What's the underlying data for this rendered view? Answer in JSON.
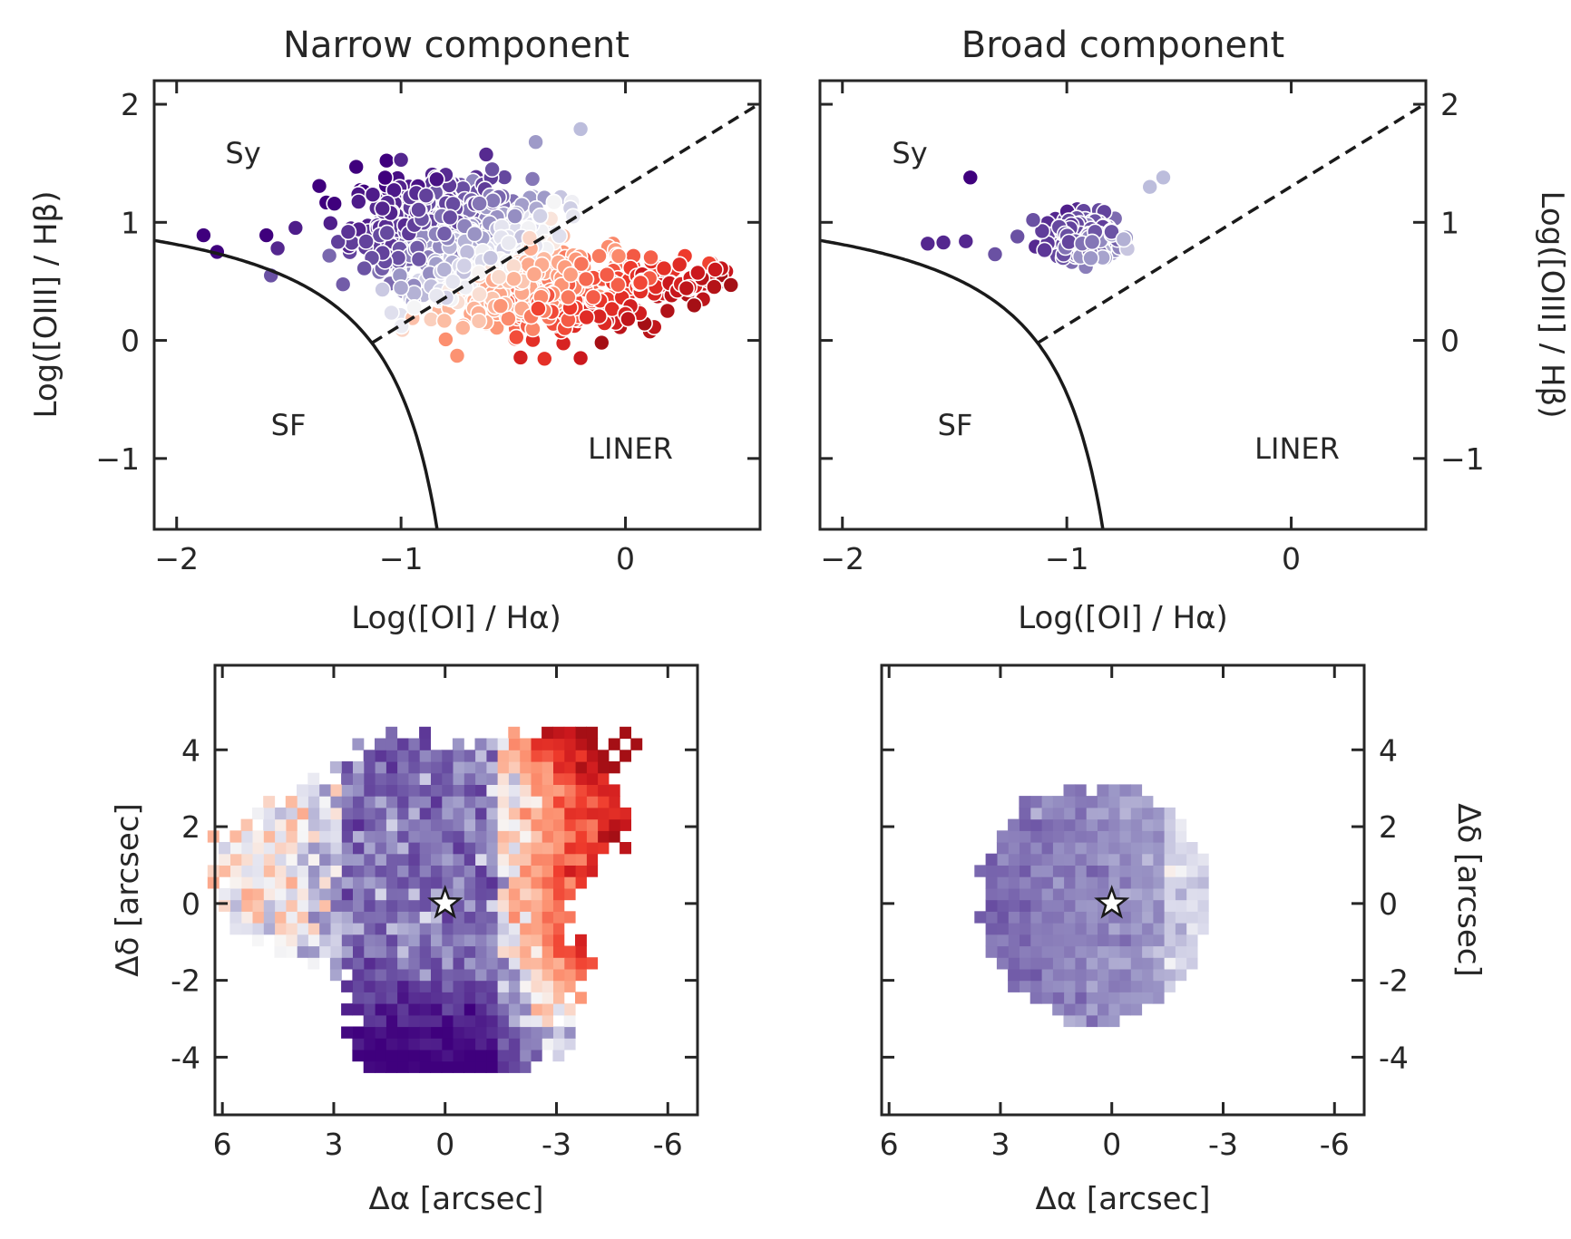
{
  "chart_data": [
    {
      "id": "bpt-narrow",
      "type": "scatter",
      "title": "Narrow component",
      "xlabel": "Log([OI] / Hα)",
      "ylabel": "Log([OIII] / Hβ)",
      "xlim": [
        -2.1,
        0.6
      ],
      "ylim": [
        -1.6,
        2.2
      ],
      "xticks": [
        -2,
        -1,
        0
      ],
      "xtick_labels": [
        "−2",
        "−1",
        "0"
      ],
      "yticks": [
        -1,
        0,
        1,
        2
      ],
      "ytick_labels": [
        "−1",
        "0",
        "1",
        "2"
      ],
      "yaxis_side": "left",
      "regions": [
        {
          "label": "Sy",
          "x": -1.8,
          "y": 1.5
        },
        {
          "label": "SF",
          "x": -1.6,
          "y": -0.7
        },
        {
          "label": "LINER",
          "x": 0.02,
          "y": -0.9
        }
      ],
      "points_sample": [
        {
          "x": -1.88,
          "y": 0.89,
          "color": "#3f007d"
        },
        {
          "x": -1.82,
          "y": 0.75,
          "color": "#3f007d"
        },
        {
          "x": -1.6,
          "y": 0.89,
          "color": "#3f007d"
        },
        {
          "x": -1.55,
          "y": 0.78,
          "color": "#54278f"
        },
        {
          "x": -1.58,
          "y": 0.55,
          "color": "#6a51a3"
        },
        {
          "x": -1.2,
          "y": 1.47,
          "color": "#3f007d"
        },
        {
          "x": -1.0,
          "y": 1.53,
          "color": "#54278f"
        },
        {
          "x": -0.4,
          "y": 1.68,
          "color": "#9e9ac8"
        },
        {
          "x": -0.2,
          "y": 1.79,
          "color": "#bcbddc"
        },
        {
          "x": 0.4,
          "y": 0.6,
          "color": "#cb181d"
        },
        {
          "x": 0.47,
          "y": 0.47,
          "color": "#a50f15"
        },
        {
          "x": -0.2,
          "y": -0.15,
          "color": "#cb181d"
        },
        {
          "x": -0.75,
          "y": -0.13,
          "color": "#fc9272"
        }
      ]
    },
    {
      "id": "bpt-broad",
      "type": "scatter",
      "title": "Broad component",
      "xlabel": "Log([OI] / Hα)",
      "ylabel": "Log([OIII] / Hβ)",
      "xlim": [
        -2.1,
        0.6
      ],
      "ylim": [
        -1.6,
        2.2
      ],
      "xticks": [
        -2,
        -1,
        0
      ],
      "xtick_labels": [
        "−2",
        "−1",
        "0"
      ],
      "yticks": [
        -1,
        0,
        1,
        2
      ],
      "ytick_labels": [
        "−1",
        "0",
        "1",
        "2"
      ],
      "yaxis_side": "right",
      "regions": [
        {
          "label": "Sy",
          "x": -1.8,
          "y": 1.5
        },
        {
          "label": "SF",
          "x": -1.6,
          "y": -0.7
        },
        {
          "label": "LINER",
          "x": 0.02,
          "y": -0.9
        }
      ],
      "points_sample": [
        {
          "x": -1.43,
          "y": 1.38,
          "color": "#3f007d"
        },
        {
          "x": -1.62,
          "y": 0.82,
          "color": "#54278f"
        },
        {
          "x": -1.55,
          "y": 0.83,
          "color": "#54278f"
        },
        {
          "x": -1.45,
          "y": 0.84,
          "color": "#54278f"
        },
        {
          "x": -1.32,
          "y": 0.73,
          "color": "#6a51a3"
        },
        {
          "x": -1.22,
          "y": 0.88,
          "color": "#6a51a3"
        },
        {
          "x": -1.15,
          "y": 1.02,
          "color": "#6a51a3"
        },
        {
          "x": -0.63,
          "y": 1.3,
          "color": "#bcbddc"
        },
        {
          "x": -0.57,
          "y": 1.38,
          "color": "#bcbddc"
        }
      ]
    },
    {
      "id": "map-narrow",
      "type": "heatmap",
      "title": "",
      "xlabel": "Δα [arcsec]",
      "ylabel": "Δδ [arcsec]",
      "xlim": [
        6.2,
        -6.8
      ],
      "ylim": [
        -5.5,
        6.2
      ],
      "xticks": [
        6,
        3,
        0,
        -3,
        -6
      ],
      "xtick_labels": [
        "6",
        "3",
        "0",
        "-3",
        "-6"
      ],
      "yticks": [
        -4,
        -2,
        0,
        2,
        4
      ],
      "ytick_labels": [
        "-4",
        "-2",
        "0",
        "2",
        "4"
      ],
      "yaxis_side": "left",
      "marker": {
        "symbol": "star",
        "x": 0,
        "y": 0
      }
    },
    {
      "id": "map-broad",
      "type": "heatmap",
      "title": "",
      "xlabel": "Δα [arcsec]",
      "ylabel": "Δδ [arcsec]",
      "xlim": [
        6.2,
        -6.8
      ],
      "ylim": [
        -5.5,
        6.2
      ],
      "xticks": [
        6,
        3,
        0,
        -3,
        -6
      ],
      "xtick_labels": [
        "6",
        "3",
        "0",
        "-3",
        "-6"
      ],
      "yticks": [
        -4,
        -2,
        0,
        2,
        4
      ],
      "ytick_labels": [
        "-4",
        "-2",
        "0",
        "2",
        "4"
      ],
      "yaxis_side": "right",
      "marker": {
        "symbol": "star",
        "x": 0,
        "y": 0
      }
    }
  ],
  "colors": {
    "purple_dark": "#3f007d",
    "purple_mid": "#6a51a3",
    "purple_light": "#bcbddc",
    "red_light": "#fcbba1",
    "red_mid": "#ef3b2c",
    "red_dark": "#a50f15",
    "axis": "#262626"
  }
}
